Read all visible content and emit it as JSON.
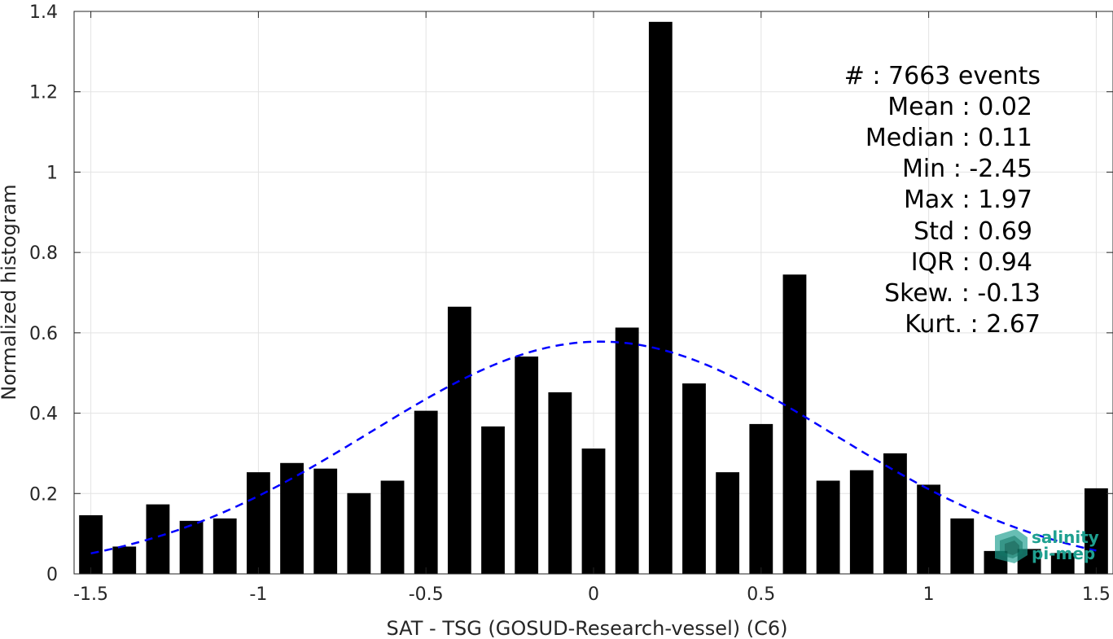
{
  "chart_data": {
    "type": "bar",
    "xlabel": "SAT - TSG (GOSUD-Research-vessel) (C6)",
    "ylabel": "Normalized histogram",
    "xlim": [
      -1.55,
      1.55
    ],
    "ylim": [
      0,
      1.4
    ],
    "xticks": [
      -1.5,
      -1,
      -0.5,
      0,
      0.5,
      1,
      1.5
    ],
    "xtick_labels": [
      "-1.5",
      "-1",
      "-0.5",
      "0",
      "0.5",
      "1",
      "1.5"
    ],
    "yticks": [
      0,
      0.2,
      0.4,
      0.6,
      0.8,
      1,
      1.2,
      1.4
    ],
    "ytick_labels": [
      "0",
      "0.2",
      "0.4",
      "0.6",
      "0.8",
      "1",
      "1.2",
      "1.4"
    ],
    "grid": true,
    "bin_width": 0.1,
    "bar_color": "#000000",
    "bars": {
      "x": [
        -1.5,
        -1.4,
        -1.3,
        -1.2,
        -1.1,
        -1.0,
        -0.9,
        -0.8,
        -0.7,
        -0.6,
        -0.5,
        -0.4,
        -0.3,
        -0.2,
        -0.1,
        0.0,
        0.1,
        0.2,
        0.3,
        0.4,
        0.5,
        0.6,
        0.7,
        0.8,
        0.9,
        1.0,
        1.1,
        1.2,
        1.3,
        1.4,
        1.5
      ],
      "values": [
        0.146,
        0.068,
        0.173,
        0.132,
        0.138,
        0.253,
        0.276,
        0.262,
        0.201,
        0.232,
        0.406,
        0.665,
        0.367,
        0.541,
        0.452,
        0.312,
        0.613,
        1.374,
        0.474,
        0.253,
        0.373,
        0.745,
        0.232,
        0.258,
        0.3,
        0.222,
        0.138,
        0.057,
        0.062,
        0.052,
        0.213
      ]
    },
    "fit": {
      "type": "normal",
      "mean": 0.02,
      "std": 0.69,
      "x_range": [
        -1.5,
        1.5
      ],
      "color": "#0000ff",
      "style": "dashed"
    },
    "annotation": [
      "#  : 7663 events",
      "Mean : 0.02",
      "Median : 0.11",
      "Min : -2.45",
      "Max : 1.97",
      "Std : 0.69",
      "IQR : 0.94",
      "Skew. : -0.13",
      "Kurt. : 2.67"
    ]
  },
  "logo": {
    "line1": "salinity",
    "line2": "pi-mep",
    "color": "#1fa090"
  }
}
